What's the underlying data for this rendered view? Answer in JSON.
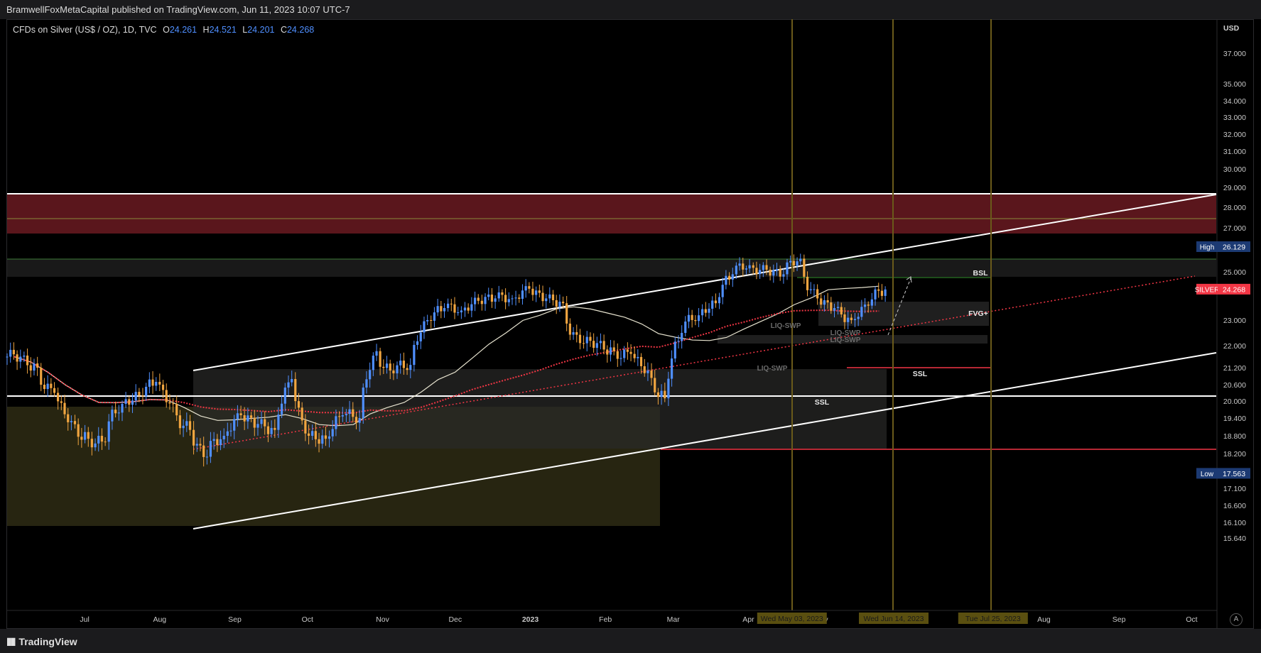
{
  "header": {
    "published_text": "BramwellFoxMetaCapital published on TradingView.com, Jun 11, 2023 10:07 UTC-7"
  },
  "legend": {
    "symbol": "CFDs on Silver (US$ / OZ), 1D, TVC",
    "o_label": "O",
    "o_value": "24.261",
    "h_label": "H",
    "h_value": "24.521",
    "l_label": "L",
    "l_value": "24.201",
    "c_label": "C",
    "c_value": "24.268"
  },
  "footer": {
    "brand": "TradingView",
    "auto_button": "A"
  },
  "chart_data": {
    "type": "candlestick",
    "symbol": "SILVER",
    "currency_label": "USD",
    "price_axis_ticks": [
      "37.000",
      "35.000",
      "34.000",
      "33.000",
      "32.000",
      "31.000",
      "30.000",
      "29.000",
      "28.000",
      "27.000",
      "25.000",
      "23.000",
      "22.000",
      "21.200",
      "20.600",
      "20.000",
      "19.400",
      "18.800",
      "18.200",
      "17.100",
      "16.600",
      "16.100",
      "15.640"
    ],
    "time_axis_ticks": [
      "Jul",
      "Aug",
      "Sep",
      "Oct",
      "Nov",
      "Dec",
      "2023",
      "Feb",
      "Mar",
      "Apr",
      "May",
      "Jun",
      "Jul",
      "Aug",
      "Sep",
      "Oct"
    ],
    "ylim": [
      15.3,
      39.5
    ],
    "price_badges": [
      {
        "label": "High",
        "value": "26.129",
        "color": "#1c3a73"
      },
      {
        "label": "SILVER",
        "value": "24.268",
        "color": "#f23645"
      },
      {
        "label": "Low",
        "value": "17.563",
        "color": "#1c3a73"
      }
    ],
    "date_flags": [
      "Wed May 03, 2023",
      "Wed Jun 14, 2023",
      "Tue Jul 25, 2023"
    ],
    "annotations": [
      "BSL",
      "FVG+",
      "SSL",
      "SSL",
      "LIQ-SWP",
      "LIQ-SWP",
      "LIQ-SWP",
      "LIQ-SWP"
    ],
    "levels": [
      {
        "name": "zone-top-line",
        "price": 29.85
      },
      {
        "name": "zone-mid-line",
        "price": 28.75
      },
      {
        "name": "zone-bottom",
        "price": 28.05
      },
      {
        "name": "green-line",
        "price": 26.9
      },
      {
        "name": "bsl-line",
        "price": 26.13
      },
      {
        "name": "white-support",
        "price": 21.7
      },
      {
        "name": "red-low-line",
        "price": 19.95
      }
    ],
    "close_series": [
      {
        "date": "2022-06-13",
        "close": 21.6
      },
      {
        "date": "2022-06-20",
        "close": 21.2
      },
      {
        "date": "2022-06-27",
        "close": 20.3
      },
      {
        "date": "2022-07-04",
        "close": 19.3
      },
      {
        "date": "2022-07-11",
        "close": 18.7
      },
      {
        "date": "2022-07-18",
        "close": 18.6
      },
      {
        "date": "2022-07-25",
        "close": 19.9
      },
      {
        "date": "2022-08-01",
        "close": 20.2
      },
      {
        "date": "2022-08-08",
        "close": 20.7
      },
      {
        "date": "2022-08-15",
        "close": 19.9
      },
      {
        "date": "2022-08-22",
        "close": 19.0
      },
      {
        "date": "2022-08-29",
        "close": 18.1
      },
      {
        "date": "2022-09-05",
        "close": 18.8
      },
      {
        "date": "2022-09-12",
        "close": 19.5
      },
      {
        "date": "2022-09-19",
        "close": 19.2
      },
      {
        "date": "2022-09-26",
        "close": 19.0
      },
      {
        "date": "2022-10-03",
        "close": 20.8
      },
      {
        "date": "2022-10-10",
        "close": 18.8
      },
      {
        "date": "2022-10-17",
        "close": 18.7
      },
      {
        "date": "2022-10-24",
        "close": 19.5
      },
      {
        "date": "2022-10-31",
        "close": 19.4
      },
      {
        "date": "2022-11-07",
        "close": 21.8
      },
      {
        "date": "2022-11-14",
        "close": 21.0
      },
      {
        "date": "2022-11-21",
        "close": 21.3
      },
      {
        "date": "2022-11-28",
        "close": 23.0
      },
      {
        "date": "2022-12-05",
        "close": 23.5
      },
      {
        "date": "2022-12-12",
        "close": 23.4
      },
      {
        "date": "2022-12-19",
        "close": 23.8
      },
      {
        "date": "2022-12-26",
        "close": 23.9
      },
      {
        "date": "2023-01-02",
        "close": 23.9
      },
      {
        "date": "2023-01-09",
        "close": 24.3
      },
      {
        "date": "2023-01-16",
        "close": 23.9
      },
      {
        "date": "2023-01-23",
        "close": 23.7
      },
      {
        "date": "2023-01-30",
        "close": 22.1
      },
      {
        "date": "2023-02-06",
        "close": 22.1
      },
      {
        "date": "2023-02-13",
        "close": 21.8
      },
      {
        "date": "2023-02-20",
        "close": 21.7
      },
      {
        "date": "2023-02-27",
        "close": 21.1
      },
      {
        "date": "2023-03-06",
        "close": 20.1
      },
      {
        "date": "2023-03-13",
        "close": 22.5
      },
      {
        "date": "2023-03-20",
        "close": 23.2
      },
      {
        "date": "2023-03-27",
        "close": 23.7
      },
      {
        "date": "2023-04-03",
        "close": 24.9
      },
      {
        "date": "2023-04-10",
        "close": 25.3
      },
      {
        "date": "2023-04-17",
        "close": 25.1
      },
      {
        "date": "2023-04-24",
        "close": 24.9
      },
      {
        "date": "2023-05-01",
        "close": 25.6
      },
      {
        "date": "2023-05-08",
        "close": 23.9
      },
      {
        "date": "2023-05-15",
        "close": 23.5
      },
      {
        "date": "2023-05-22",
        "close": 23.0
      },
      {
        "date": "2023-05-29",
        "close": 23.6
      },
      {
        "date": "2023-06-05",
        "close": 24.27
      }
    ]
  }
}
